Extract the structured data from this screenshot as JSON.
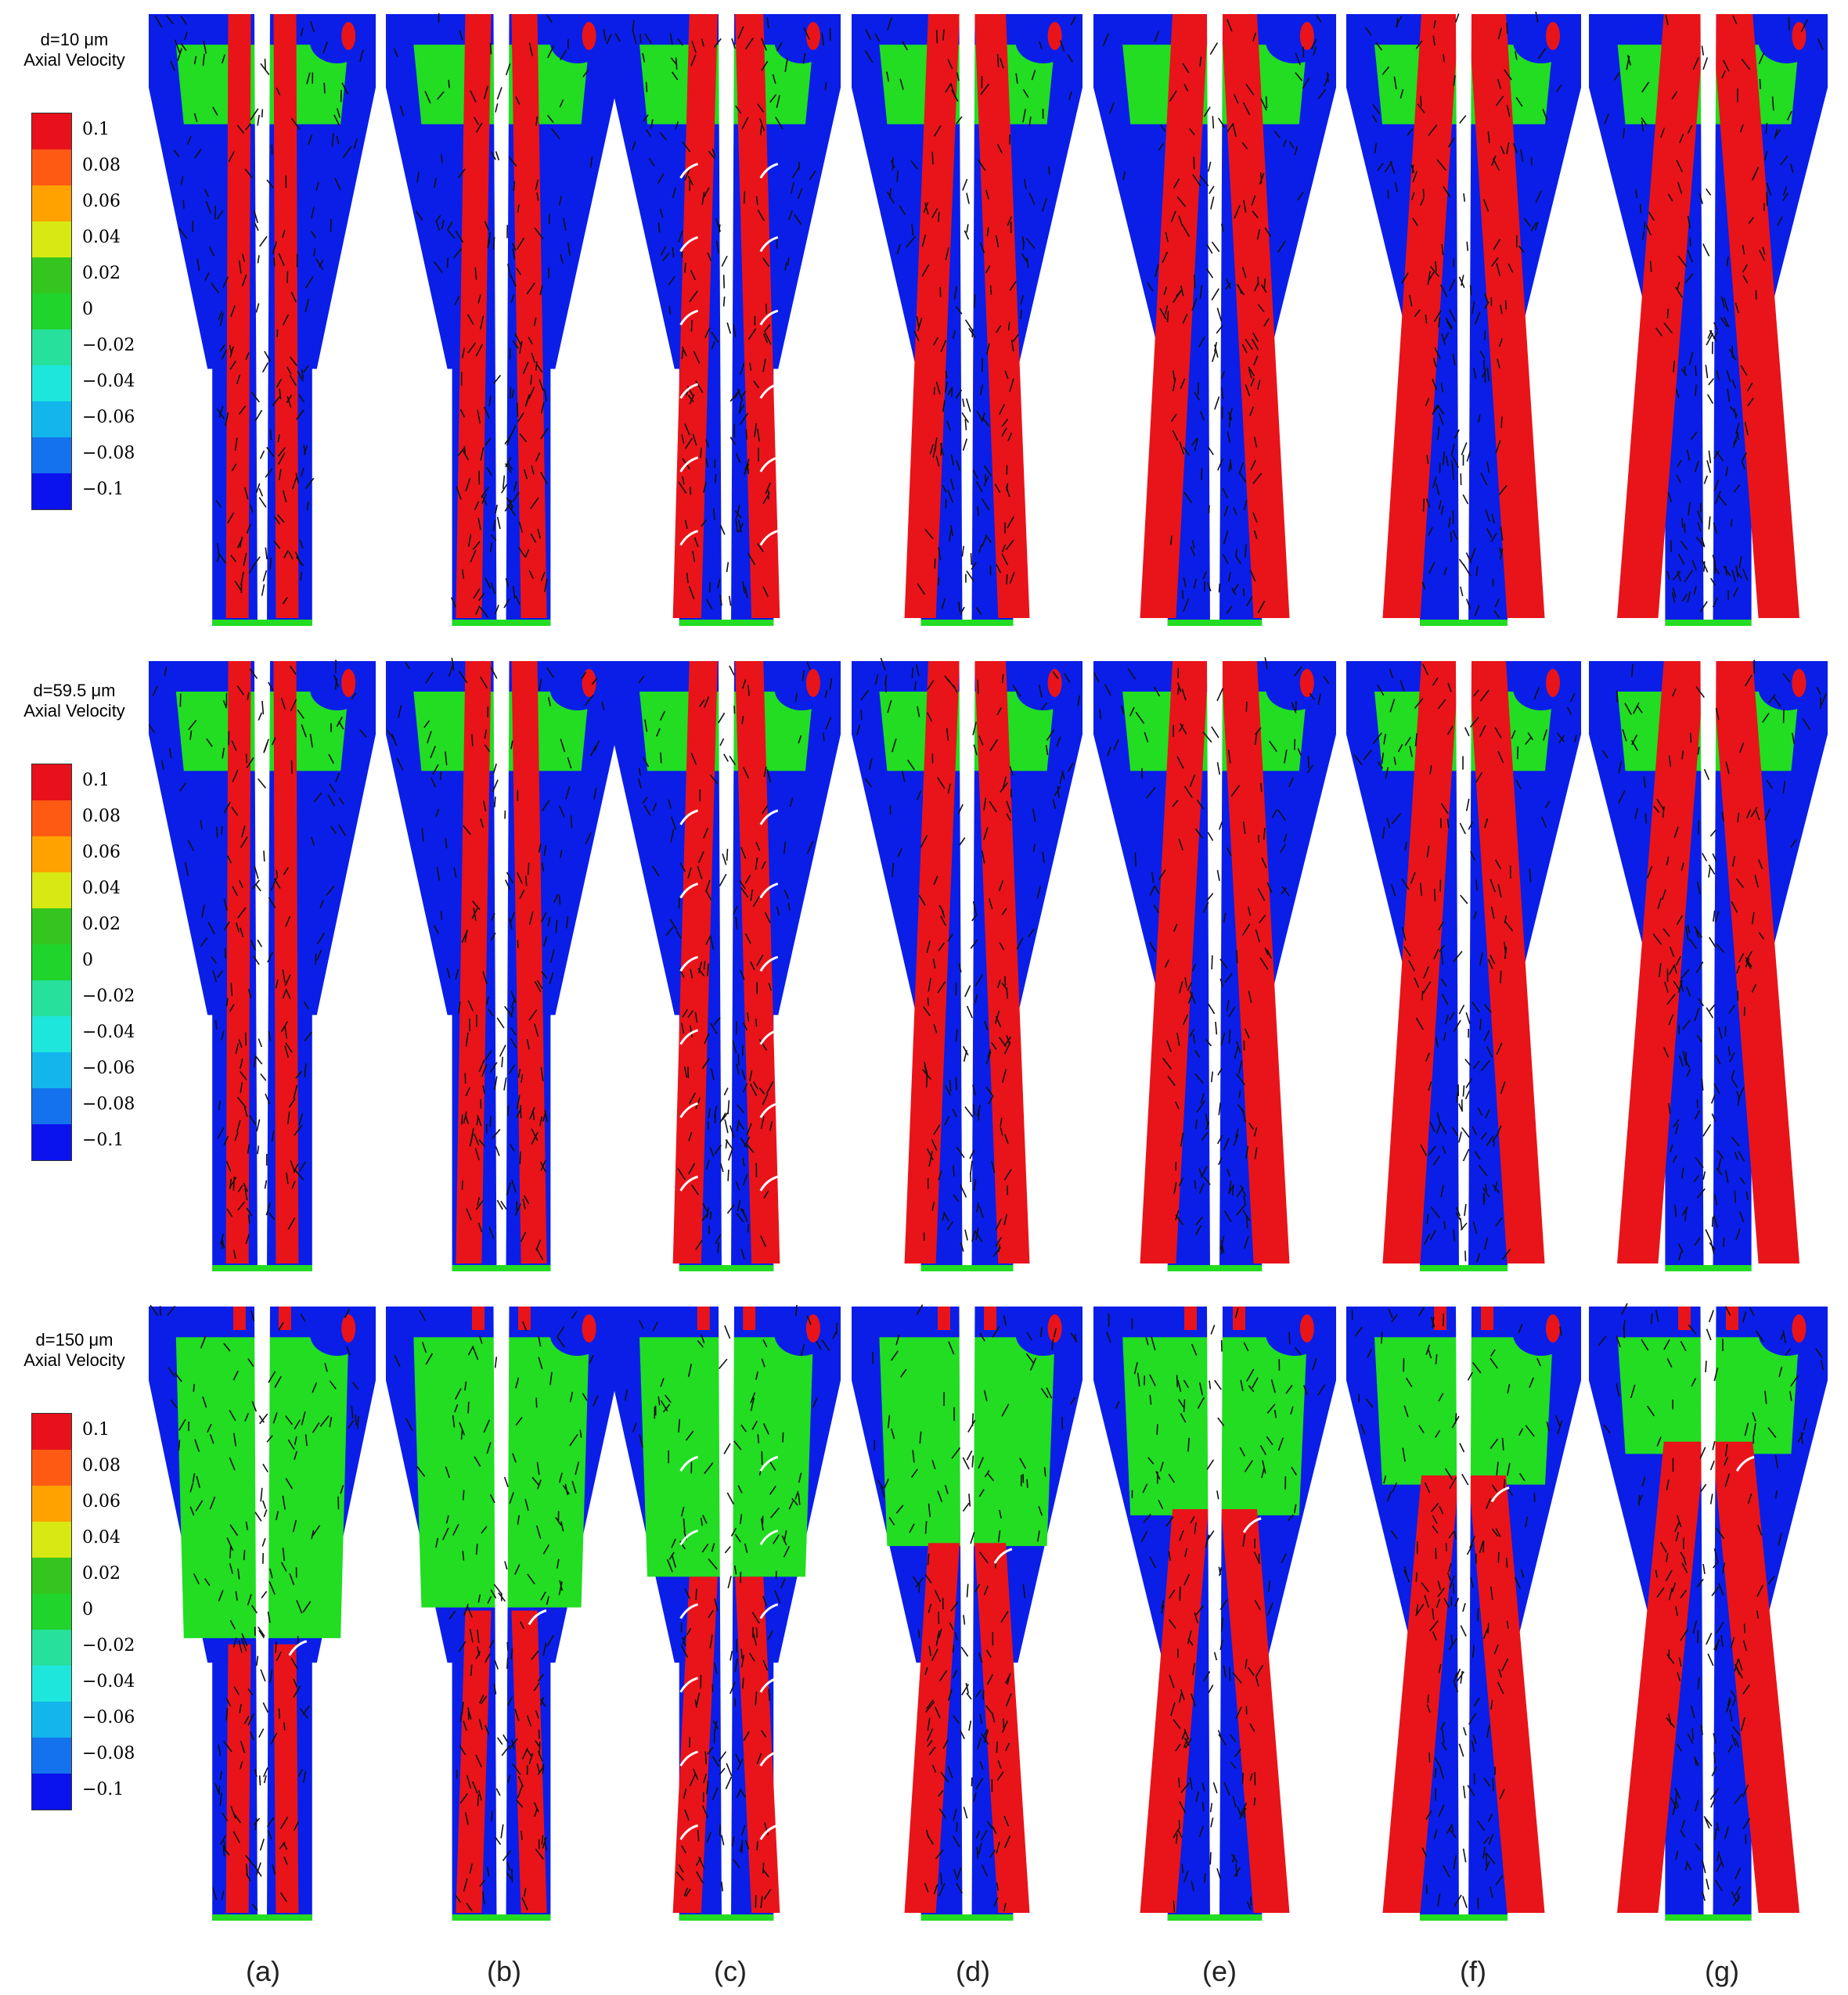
{
  "rows": [
    {
      "id": "d10",
      "title_line1": "d=10 μm",
      "title_line2": "Axial Velocity"
    },
    {
      "id": "d59",
      "title_line1": "d=59.5 μm",
      "title_line2": "Axial Velocity"
    },
    {
      "id": "d150",
      "title_line1": "d=150 μm",
      "title_line2": "Axial Velocity"
    }
  ],
  "legend": {
    "ticks": [
      "0.1",
      "0.08",
      "0.06",
      "0.04",
      "0.02",
      "0",
      "−0.02",
      "−0.04",
      "−0.06",
      "−0.08",
      "−0.1"
    ],
    "colors": [
      "#e8101a",
      "#ff5a14",
      "#ffa200",
      "#d8e812",
      "#34c61e",
      "#1fd42a",
      "#26e09c",
      "#1ee6dc",
      "#12b6ec",
      "#1472ee",
      "#0a12ee"
    ]
  },
  "panels": [
    "(a)",
    "(b)",
    "(c)",
    "(d)",
    "(e)",
    "(f)",
    "(g)"
  ],
  "colors": {
    "wall_flow": "#0a1ee8",
    "core_flow": "#e8141a",
    "neutral_flow": "#22dd22",
    "vector": "#111111",
    "highlight_vector": "#ffffff"
  }
}
